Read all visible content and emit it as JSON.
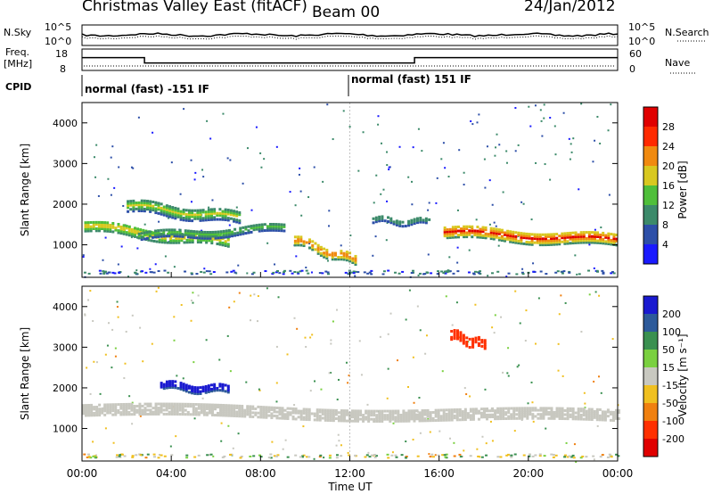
{
  "header": {
    "station": "Christmas Valley East (fitACF)",
    "beam": "Beam 00",
    "date": "24/Jan/2012"
  },
  "noise_panel": {
    "left_label": "N.Sky",
    "left_ticks": [
      "10^5",
      "10^0"
    ],
    "right_label": "N.Search",
    "right_ticks": [
      "10^5",
      "10^0"
    ]
  },
  "freq_panel": {
    "left_label_1": "Freq.",
    "left_label_2": "[MHz]",
    "left_ticks": [
      "18",
      "8"
    ],
    "right_label": "Nave",
    "right_ticks": [
      "60",
      "0"
    ]
  },
  "cpid": {
    "label": "CPID",
    "segments": [
      {
        "text": "normal (fast) -151 IF",
        "start_hour": 0
      },
      {
        "text": "normal (fast) 151 IF",
        "start_hour": 12.0
      }
    ]
  },
  "x_axis": {
    "label": "Time UT",
    "ticks": [
      "00:00",
      "04:00",
      "08:00",
      "12:00",
      "16:00",
      "20:00",
      "00:00"
    ]
  },
  "power_panel": {
    "ylabel": "Slant Range [km]",
    "yticks": [
      "1000",
      "2000",
      "3000",
      "4000"
    ],
    "colorbar_label": "Power [dB]",
    "colorbar_ticks": [
      "4",
      "8",
      "12",
      "16",
      "20",
      "24",
      "28"
    ],
    "colors": [
      "#1a1aff",
      "#2d4fa8",
      "#3c8a6a",
      "#4fbf3a",
      "#d8c820",
      "#f08a10",
      "#ff2a00",
      "#e00000"
    ]
  },
  "velocity_panel": {
    "ylabel": "Slant Range [km]",
    "yticks": [
      "1000",
      "2000",
      "3000",
      "4000"
    ],
    "colorbar_label": "Velocity [m s⁻¹]",
    "colorbar_ticks": [
      "200",
      "100",
      "50",
      "15",
      "-15",
      "-50",
      "-100",
      "-200"
    ],
    "colors": [
      "#1a1ad0",
      "#2d5a9a",
      "#3a9050",
      "#7ad040",
      "#c8c8c0",
      "#f0c020",
      "#f08010",
      "#ff3000",
      "#e00000"
    ],
    "ground_scatter_color": "#c8c8c0"
  },
  "chart_data": {
    "type": "heatmap",
    "x_range_hours": [
      0,
      24
    ],
    "y_range_km": [
      200,
      4500
    ],
    "noise_sky_level": 0.55,
    "freq_series": {
      "name": "Freq. [MHz]",
      "x_hours": [
        0,
        2.8,
        2.8,
        14.9,
        14.9,
        24
      ],
      "values": [
        14,
        14,
        11.5,
        11.5,
        14,
        14
      ]
    },
    "power_features": [
      {
        "kind": "band",
        "start_h": 0.1,
        "end_h": 6.5,
        "r0_km": 1500,
        "r1_km": 1100,
        "width_km": 260,
        "level_db": 18
      },
      {
        "kind": "band",
        "start_h": 2.0,
        "end_h": 7.0,
        "r0_km": 2000,
        "r1_km": 1700,
        "width_km": 300,
        "level_db": 15
      },
      {
        "kind": "band",
        "start_h": 2.5,
        "end_h": 9.0,
        "r0_km": 1250,
        "r1_km": 1450,
        "width_km": 200,
        "level_db": 12
      },
      {
        "kind": "band",
        "start_h": 9.5,
        "end_h": 12.2,
        "r0_km": 1150,
        "r1_km": 650,
        "width_km": 250,
        "level_db": 24
      },
      {
        "kind": "band",
        "start_h": 16.2,
        "end_h": 23.9,
        "r0_km": 1350,
        "r1_km": 1150,
        "width_km": 300,
        "level_db": 26
      },
      {
        "kind": "band",
        "start_h": 13.0,
        "end_h": 15.5,
        "r0_km": 1650,
        "r1_km": 1600,
        "width_km": 150,
        "level_db": 10
      }
    ],
    "velocity_features": [
      {
        "kind": "ground",
        "start_h": 0.0,
        "end_h": 24.0,
        "r0_km": 1500,
        "r1_km": 1350,
        "width_km": 300
      },
      {
        "kind": "band",
        "start_h": 3.5,
        "end_h": 6.5,
        "r0_km": 2100,
        "r1_km": 2000,
        "width_km": 200,
        "velocity": 200
      },
      {
        "kind": "band",
        "start_h": 16.5,
        "end_h": 18.0,
        "r0_km": 3350,
        "r1_km": 3100,
        "width_km": 250,
        "velocity": -200
      }
    ]
  }
}
